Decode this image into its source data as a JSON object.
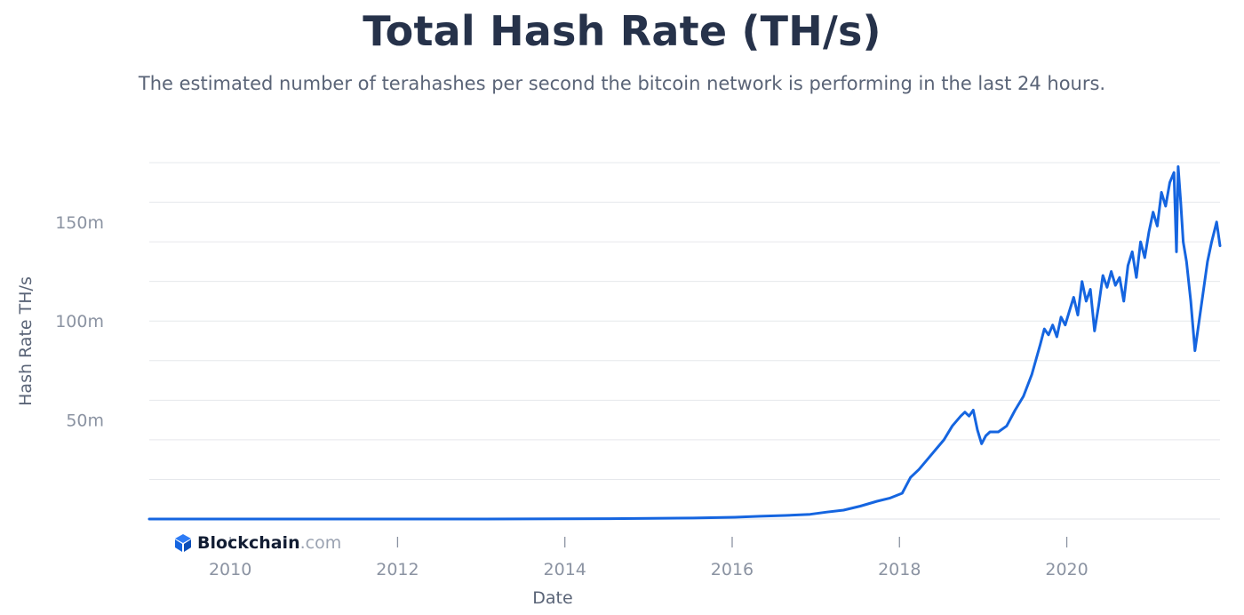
{
  "chart_data": {
    "type": "line",
    "title": "Total Hash Rate (TH/s)",
    "subtitle": "The estimated number of terahashes per second the bitcoin network is performing in the last 24 hours.",
    "xlabel": "Date",
    "ylabel": "Hash Rate TH/s",
    "xlim": [
      2009.0,
      2021.8
    ],
    "ylim": [
      0,
      180
    ],
    "x_ticks": [
      {
        "value": 2010,
        "label": "2010"
      },
      {
        "value": 2012,
        "label": "2012"
      },
      {
        "value": 2014,
        "label": "2014"
      },
      {
        "value": 2016,
        "label": "2016"
      },
      {
        "value": 2018,
        "label": "2018"
      },
      {
        "value": 2020,
        "label": "2020"
      }
    ],
    "y_ticks": [
      {
        "value": 50,
        "label": "50m"
      },
      {
        "value": 100,
        "label": "100m"
      },
      {
        "value": 150,
        "label": "150m"
      }
    ],
    "grid": true,
    "grid_lines": [
      20,
      40,
      60,
      80,
      100,
      120,
      140,
      160,
      180
    ],
    "legend": "none",
    "series": [
      {
        "color": "#1565e0",
        "x": [
          2009.0,
          2011.0,
          2013.0,
          2014.0,
          2014.5,
          2015.0,
          2015.5,
          2016.0,
          2016.3,
          2016.6,
          2016.9,
          2017.1,
          2017.3,
          2017.5,
          2017.7,
          2017.85,
          2018.0,
          2018.1,
          2018.2,
          2018.3,
          2018.4,
          2018.5,
          2018.6,
          2018.7,
          2018.75,
          2018.8,
          2018.85,
          2018.9,
          2018.95,
          2019.0,
          2019.05,
          2019.15,
          2019.25,
          2019.35,
          2019.45,
          2019.55,
          2019.65,
          2019.7,
          2019.75,
          2019.8,
          2019.85,
          2019.9,
          2019.95,
          2020.0,
          2020.05,
          2020.1,
          2020.15,
          2020.2,
          2020.25,
          2020.3,
          2020.35,
          2020.4,
          2020.45,
          2020.5,
          2020.55,
          2020.6,
          2020.65,
          2020.7,
          2020.75,
          2020.8,
          2020.85,
          2020.9,
          2020.95,
          2021.0,
          2021.05,
          2021.1,
          2021.15,
          2021.2,
          2021.25,
          2021.28,
          2021.3,
          2021.33,
          2021.36,
          2021.4,
          2021.45,
          2021.5,
          2021.55,
          2021.6,
          2021.65,
          2021.7,
          2021.73,
          2021.76,
          2021.8
        ],
        "values": [
          0.0,
          0.0,
          0.01,
          0.1,
          0.2,
          0.35,
          0.5,
          0.9,
          1.4,
          1.8,
          2.4,
          3.5,
          4.5,
          6.5,
          9.0,
          10.5,
          13.0,
          21.0,
          25.0,
          30.0,
          35.0,
          40.0,
          47.0,
          52.0,
          54.0,
          52.0,
          55.0,
          45.0,
          38.0,
          42.0,
          44.0,
          44.0,
          47.0,
          55.0,
          62.0,
          73.0,
          88.0,
          96.0,
          93.0,
          98.0,
          92.0,
          102.0,
          98.0,
          105.0,
          112.0,
          103.0,
          120.0,
          110.0,
          116.0,
          95.0,
          108.0,
          123.0,
          117.0,
          125.0,
          118.0,
          122.0,
          110.0,
          128.0,
          135.0,
          122.0,
          140.0,
          132.0,
          145.0,
          155.0,
          148.0,
          165.0,
          158.0,
          170.0,
          175.0,
          135.0,
          178.0,
          160.0,
          140.0,
          130.0,
          110.0,
          85.0,
          100.0,
          115.0,
          130.0,
          140.0,
          145.0,
          150.0,
          138.0
        ]
      }
    ]
  },
  "branding": {
    "name": "Blockchain",
    "tld": ".com"
  }
}
